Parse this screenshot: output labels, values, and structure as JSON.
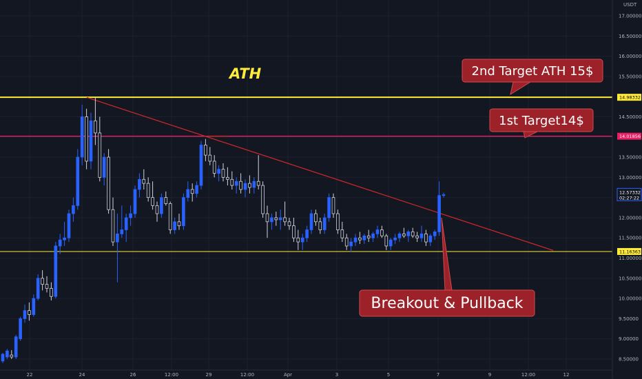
{
  "chart_data": {
    "type": "candlestick",
    "currency": "USDT",
    "ylim": [
      8.35,
      17.2
    ],
    "y_ticks": [
      "17.00000",
      "16.50000",
      "16.00000",
      "15.50000",
      "15.00000",
      "14.50000",
      "14.00000",
      "13.50000",
      "13.00000",
      "12.50000",
      "12.00000",
      "11.50000",
      "11.00000",
      "10.50000",
      "10.00000",
      "9.50000",
      "9.00000",
      "8.50000"
    ],
    "x_ticks": [
      "22",
      "24",
      "26",
      "12:00",
      "29",
      "12:00",
      "Apr",
      "3",
      "5",
      "7",
      "9",
      "12:00",
      "12"
    ],
    "last_price": "12.57332",
    "countdown": "02:27:22",
    "levels": [
      {
        "price": 14.98332,
        "label": "14.98332",
        "color": "#ffeb3b"
      },
      {
        "price": 14.01856,
        "label": "14.01856",
        "color": "#e91e63"
      },
      {
        "price": 11.16363,
        "label": "11.16363",
        "color": "#ffeb3b"
      }
    ],
    "trendline": {
      "start_price": 14.98,
      "end_price": 11.19,
      "color": "#c62828"
    },
    "annotations": {
      "ath": "ATH",
      "target2": "2nd Target ATH 15$",
      "target1": "1st Target14$",
      "breakout": "Breakout & Pullback"
    },
    "colors": {
      "up": "#2962ff",
      "down": "#d1d4dc",
      "background": "#131722",
      "callout": "#9c2128"
    },
    "candles": [
      {
        "o": 8.45,
        "h": 8.65,
        "l": 8.4,
        "c": 8.62
      },
      {
        "o": 8.55,
        "h": 8.75,
        "l": 8.5,
        "c": 8.7
      },
      {
        "o": 8.6,
        "h": 8.72,
        "l": 8.5,
        "c": 8.55
      },
      {
        "o": 8.55,
        "h": 9.1,
        "l": 8.5,
        "c": 9.05
      },
      {
        "o": 9.0,
        "h": 9.55,
        "l": 8.95,
        "c": 9.5
      },
      {
        "o": 9.5,
        "h": 9.85,
        "l": 9.4,
        "c": 9.7
      },
      {
        "o": 9.7,
        "h": 9.9,
        "l": 9.45,
        "c": 9.6
      },
      {
        "o": 9.6,
        "h": 10.1,
        "l": 9.55,
        "c": 10.0
      },
      {
        "o": 10.0,
        "h": 10.6,
        "l": 9.95,
        "c": 10.5
      },
      {
        "o": 10.5,
        "h": 10.7,
        "l": 10.2,
        "c": 10.35
      },
      {
        "o": 10.35,
        "h": 10.55,
        "l": 10.15,
        "c": 10.25
      },
      {
        "o": 10.25,
        "h": 10.4,
        "l": 9.95,
        "c": 10.05
      },
      {
        "o": 10.05,
        "h": 11.4,
        "l": 10.0,
        "c": 11.3
      },
      {
        "o": 11.3,
        "h": 11.6,
        "l": 11.1,
        "c": 11.45
      },
      {
        "o": 11.45,
        "h": 11.9,
        "l": 11.3,
        "c": 11.5
      },
      {
        "o": 11.5,
        "h": 12.2,
        "l": 11.4,
        "c": 12.1
      },
      {
        "o": 12.1,
        "h": 12.5,
        "l": 11.9,
        "c": 12.3
      },
      {
        "o": 12.3,
        "h": 13.7,
        "l": 12.2,
        "c": 13.5
      },
      {
        "o": 13.5,
        "h": 14.8,
        "l": 13.3,
        "c": 14.5
      },
      {
        "o": 14.5,
        "h": 14.7,
        "l": 13.2,
        "c": 13.4
      },
      {
        "o": 13.4,
        "h": 14.6,
        "l": 13.2,
        "c": 14.4
      },
      {
        "o": 14.4,
        "h": 14.98,
        "l": 13.8,
        "c": 14.1
      },
      {
        "o": 14.1,
        "h": 14.5,
        "l": 12.9,
        "c": 13.0
      },
      {
        "o": 13.0,
        "h": 13.6,
        "l": 12.8,
        "c": 13.5
      },
      {
        "o": 13.5,
        "h": 13.7,
        "l": 12.1,
        "c": 12.2
      },
      {
        "o": 12.2,
        "h": 12.5,
        "l": 11.3,
        "c": 11.4
      },
      {
        "o": 11.4,
        "h": 12.1,
        "l": 10.4,
        "c": 11.6
      },
      {
        "o": 11.6,
        "h": 12.3,
        "l": 11.5,
        "c": 11.7
      },
      {
        "o": 11.7,
        "h": 12.1,
        "l": 11.4,
        "c": 12.0
      },
      {
        "o": 12.0,
        "h": 12.3,
        "l": 11.8,
        "c": 12.1
      },
      {
        "o": 12.1,
        "h": 12.8,
        "l": 12.0,
        "c": 12.7
      },
      {
        "o": 12.7,
        "h": 13.1,
        "l": 12.5,
        "c": 12.95
      },
      {
        "o": 12.95,
        "h": 13.2,
        "l": 12.7,
        "c": 12.85
      },
      {
        "o": 12.85,
        "h": 13.0,
        "l": 12.4,
        "c": 12.5
      },
      {
        "o": 12.5,
        "h": 12.9,
        "l": 12.2,
        "c": 12.3
      },
      {
        "o": 12.3,
        "h": 12.4,
        "l": 11.9,
        "c": 12.1
      },
      {
        "o": 12.1,
        "h": 12.6,
        "l": 12.0,
        "c": 12.5
      },
      {
        "o": 12.5,
        "h": 12.65,
        "l": 12.3,
        "c": 12.35
      },
      {
        "o": 12.35,
        "h": 12.4,
        "l": 11.6,
        "c": 11.7
      },
      {
        "o": 11.7,
        "h": 12.0,
        "l": 11.6,
        "c": 11.9
      },
      {
        "o": 11.9,
        "h": 12.1,
        "l": 11.7,
        "c": 11.8
      },
      {
        "o": 11.8,
        "h": 12.6,
        "l": 11.7,
        "c": 12.5
      },
      {
        "o": 12.5,
        "h": 12.9,
        "l": 12.4,
        "c": 12.7
      },
      {
        "o": 12.7,
        "h": 12.85,
        "l": 12.4,
        "c": 12.6
      },
      {
        "o": 12.6,
        "h": 12.9,
        "l": 12.5,
        "c": 12.8
      },
      {
        "o": 12.8,
        "h": 13.9,
        "l": 12.7,
        "c": 13.8
      },
      {
        "o": 13.8,
        "h": 13.95,
        "l": 13.4,
        "c": 13.55
      },
      {
        "o": 13.55,
        "h": 13.75,
        "l": 13.3,
        "c": 13.4
      },
      {
        "o": 13.4,
        "h": 13.55,
        "l": 13.0,
        "c": 13.1
      },
      {
        "o": 13.1,
        "h": 13.3,
        "l": 12.9,
        "c": 13.2
      },
      {
        "o": 13.2,
        "h": 13.35,
        "l": 12.9,
        "c": 13.0
      },
      {
        "o": 13.0,
        "h": 13.25,
        "l": 12.8,
        "c": 12.95
      },
      {
        "o": 12.95,
        "h": 13.15,
        "l": 12.7,
        "c": 12.8
      },
      {
        "o": 12.8,
        "h": 13.0,
        "l": 12.6,
        "c": 12.9
      },
      {
        "o": 12.9,
        "h": 13.1,
        "l": 12.6,
        "c": 12.7
      },
      {
        "o": 12.7,
        "h": 12.95,
        "l": 12.5,
        "c": 12.85
      },
      {
        "o": 12.85,
        "h": 13.05,
        "l": 12.6,
        "c": 12.75
      },
      {
        "o": 12.75,
        "h": 13.0,
        "l": 12.6,
        "c": 12.9
      },
      {
        "o": 12.9,
        "h": 13.55,
        "l": 12.7,
        "c": 12.8
      },
      {
        "o": 12.8,
        "h": 12.9,
        "l": 12.0,
        "c": 12.1
      },
      {
        "o": 12.1,
        "h": 12.3,
        "l": 11.5,
        "c": 11.9
      },
      {
        "o": 11.9,
        "h": 12.1,
        "l": 11.7,
        "c": 12.0
      },
      {
        "o": 12.0,
        "h": 12.15,
        "l": 11.8,
        "c": 11.95
      },
      {
        "o": 11.95,
        "h": 12.2,
        "l": 11.7,
        "c": 12.0
      },
      {
        "o": 12.0,
        "h": 12.4,
        "l": 11.8,
        "c": 11.9
      },
      {
        "o": 11.9,
        "h": 12.0,
        "l": 11.7,
        "c": 11.8
      },
      {
        "o": 11.8,
        "h": 12.0,
        "l": 11.4,
        "c": 11.5
      },
      {
        "o": 11.5,
        "h": 11.7,
        "l": 11.2,
        "c": 11.4
      },
      {
        "o": 11.4,
        "h": 11.6,
        "l": 11.2,
        "c": 11.5
      },
      {
        "o": 11.5,
        "h": 11.8,
        "l": 11.4,
        "c": 11.7
      },
      {
        "o": 11.7,
        "h": 12.2,
        "l": 11.6,
        "c": 12.1
      },
      {
        "o": 12.1,
        "h": 12.2,
        "l": 11.8,
        "c": 11.9
      },
      {
        "o": 11.9,
        "h": 12.0,
        "l": 11.6,
        "c": 11.7
      },
      {
        "o": 11.7,
        "h": 12.1,
        "l": 11.6,
        "c": 12.0
      },
      {
        "o": 12.0,
        "h": 12.6,
        "l": 11.9,
        "c": 12.5
      },
      {
        "o": 12.5,
        "h": 12.6,
        "l": 12.0,
        "c": 12.1
      },
      {
        "o": 12.1,
        "h": 12.2,
        "l": 11.6,
        "c": 11.7
      },
      {
        "o": 11.7,
        "h": 11.9,
        "l": 11.4,
        "c": 11.5
      },
      {
        "o": 11.5,
        "h": 11.6,
        "l": 11.2,
        "c": 11.3
      },
      {
        "o": 11.3,
        "h": 11.5,
        "l": 11.15,
        "c": 11.4
      },
      {
        "o": 11.4,
        "h": 11.6,
        "l": 11.3,
        "c": 11.5
      },
      {
        "o": 11.5,
        "h": 11.65,
        "l": 11.35,
        "c": 11.45
      },
      {
        "o": 11.45,
        "h": 11.6,
        "l": 11.35,
        "c": 11.55
      },
      {
        "o": 11.55,
        "h": 11.7,
        "l": 11.4,
        "c": 11.5
      },
      {
        "o": 11.5,
        "h": 11.65,
        "l": 11.4,
        "c": 11.6
      },
      {
        "o": 11.6,
        "h": 11.8,
        "l": 11.5,
        "c": 11.7
      },
      {
        "o": 11.7,
        "h": 11.8,
        "l": 11.5,
        "c": 11.55
      },
      {
        "o": 11.55,
        "h": 11.6,
        "l": 11.2,
        "c": 11.3
      },
      {
        "o": 11.3,
        "h": 11.5,
        "l": 11.2,
        "c": 11.45
      },
      {
        "o": 11.45,
        "h": 11.6,
        "l": 11.35,
        "c": 11.5
      },
      {
        "o": 11.5,
        "h": 11.65,
        "l": 11.4,
        "c": 11.6
      },
      {
        "o": 11.6,
        "h": 11.75,
        "l": 11.5,
        "c": 11.55
      },
      {
        "o": 11.55,
        "h": 11.7,
        "l": 11.4,
        "c": 11.65
      },
      {
        "o": 11.65,
        "h": 11.75,
        "l": 11.5,
        "c": 11.55
      },
      {
        "o": 11.55,
        "h": 11.65,
        "l": 11.4,
        "c": 11.5
      },
      {
        "o": 11.5,
        "h": 11.8,
        "l": 11.4,
        "c": 11.6
      },
      {
        "o": 11.6,
        "h": 11.7,
        "l": 11.3,
        "c": 11.4
      },
      {
        "o": 11.4,
        "h": 11.6,
        "l": 11.3,
        "c": 11.55
      },
      {
        "o": 11.55,
        "h": 11.7,
        "l": 11.45,
        "c": 11.65
      },
      {
        "o": 11.65,
        "h": 12.9,
        "l": 11.55,
        "c": 12.55
      },
      {
        "o": 12.55,
        "h": 12.62,
        "l": 12.5,
        "c": 12.57
      }
    ]
  }
}
